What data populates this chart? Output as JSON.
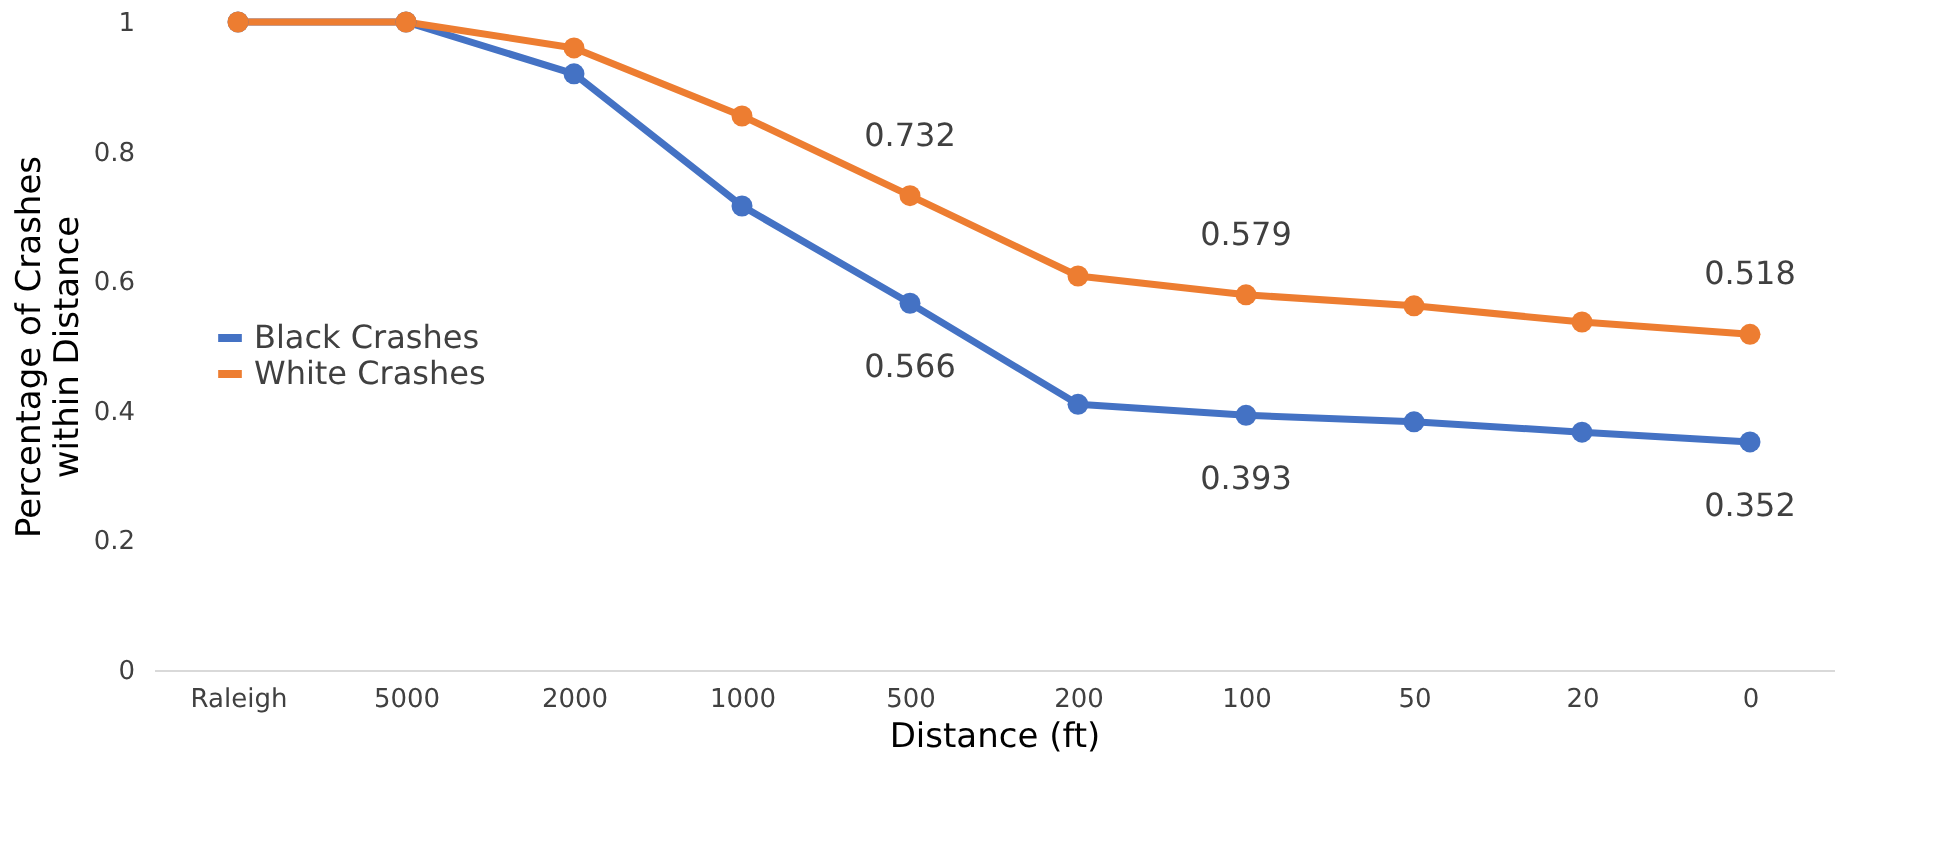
{
  "chart_data": {
    "type": "line",
    "xlabel": "Distance (ft)",
    "ylabel": "Percentage of Crashes within Distance",
    "categories": [
      "Raleigh",
      "5000",
      "2000",
      "1000",
      "500",
      "200",
      "100",
      "50",
      "20",
      "0"
    ],
    "series": [
      {
        "name": "Black Crashes",
        "color": "#4472c4",
        "values": [
          1,
          1,
          0.92,
          0.716,
          0.566,
          0.41,
          0.393,
          0.383,
          0.367,
          0.352
        ],
        "value_labels": [
          null,
          null,
          null,
          null,
          "0.566",
          null,
          "0.393",
          null,
          null,
          "0.352"
        ]
      },
      {
        "name": "White Crashes",
        "color": "#ed7d31",
        "values": [
          1,
          1,
          0.96,
          0.855,
          0.732,
          0.608,
          0.579,
          0.562,
          0.537,
          0.518
        ],
        "value_labels": [
          null,
          null,
          null,
          null,
          "0.732",
          null,
          "0.579",
          null,
          null,
          "0.518"
        ]
      }
    ],
    "ylim": [
      0,
      1
    ],
    "yticks": [
      0,
      0.2,
      0.4,
      0.6,
      0.8,
      1
    ],
    "grid": false,
    "legend": "left",
    "marker": "circle",
    "line_style": "solid"
  }
}
